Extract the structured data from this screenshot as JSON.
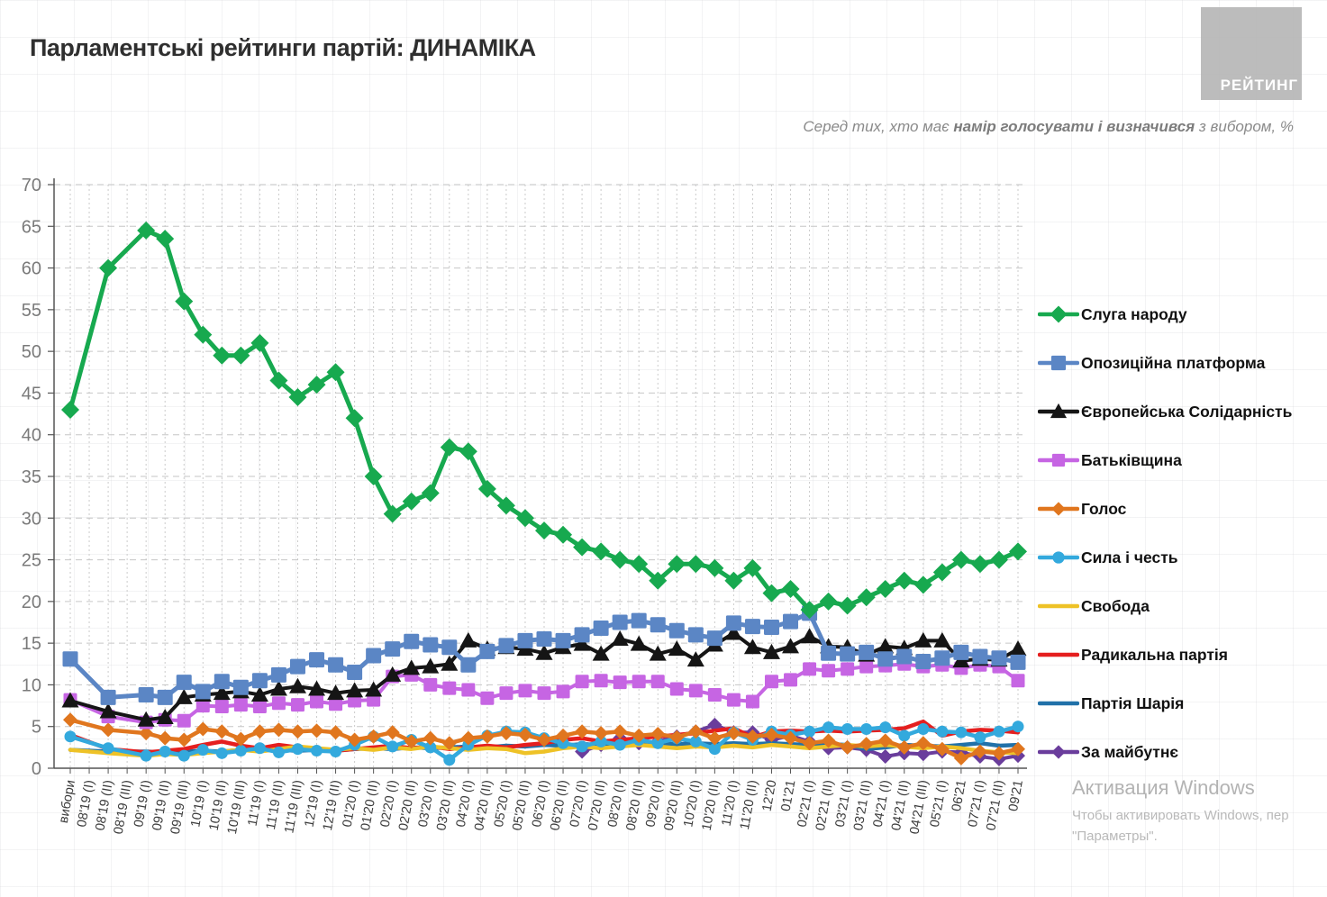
{
  "header": {
    "title": "Парламентські рейтинги партій: ДИНАМІКА",
    "subtitle_prefix": "Серед тих, хто має ",
    "subtitle_bold": "намір голосувати і визначився",
    "subtitle_suffix": " з вибором, %"
  },
  "logo": {
    "text": "РЕЙТИНГ",
    "color": "#b7b7b7"
  },
  "watermark": {
    "line1": "Активация Windows",
    "line2": "Чтобы активировать Windows, пер",
    "line3": "\"Параметры\"."
  },
  "chart_data": {
    "type": "line",
    "title": "Парламентські рейтинги партій: ДИНАМІКА",
    "xlabel": "",
    "ylabel": "",
    "ylim": [
      0,
      70
    ],
    "ytick_step": 5,
    "grid": true,
    "x_labels_rotated": true,
    "legend_position": "right",
    "categories": [
      "вибори",
      "08'19 (I)",
      "08'19 (II)",
      "08'19 (III)",
      "09'19 (I)",
      "09'19 (II)",
      "09'19 (III)",
      "10'19 (I)",
      "10'19 (II)",
      "10'19 (III)",
      "11'19 (I)",
      "11'19 (II)",
      "11'19 (III)",
      "12'19 (I)",
      "12'19 (II)",
      "01'20 (I)",
      "01'20 (II)",
      "02'20 (I)",
      "02'20 (II)",
      "03'20 (I)",
      "03'20 (II)",
      "04'20 (I)",
      "04'20 (II)",
      "05'20 (I)",
      "05'20 (II)",
      "06'20 (I)",
      "06'20 (II)",
      "07'20 (I)",
      "07'20 (II)",
      "08'20 (I)",
      "08'20 (II)",
      "09'20 (I)",
      "09'20 (II)",
      "10'20 (I)",
      "10'20 (II)",
      "11'20 (I)",
      "11'20 (II)",
      "12'20",
      "01'21",
      "02'21 (I)",
      "02'21 (II)",
      "03'21 (I)",
      "03'21 (II)",
      "04'21 (I)",
      "04'21 (II)",
      "04'21 (III)",
      "05'21 (I)",
      "06'21",
      "07'21 (I)",
      "07'21 (II)",
      "09'21"
    ],
    "series": [
      {
        "name": "Слуга народу",
        "color": "#17a94f",
        "marker": "diamond",
        "line_width": 5,
        "marker_size": 9,
        "values": [
          43,
          null,
          60,
          null,
          64.5,
          63.5,
          56,
          52,
          49.5,
          49.5,
          51,
          46.5,
          44.5,
          46,
          47.5,
          42,
          35,
          30.5,
          32,
          33,
          38.5,
          38,
          33.5,
          31.5,
          30,
          28.5,
          28,
          26.5,
          26,
          25,
          24.5,
          22.5,
          24.5,
          24.5,
          24,
          22.5,
          24,
          21,
          21.5,
          19,
          20,
          19.5,
          20.5,
          21.5,
          22.5,
          22,
          23.5,
          25,
          24.5,
          25,
          26
        ]
      },
      {
        "name": "Опозиційна платформа",
        "color": "#5b86c5",
        "marker": "square",
        "line_width": 5,
        "marker_size": 8.5,
        "values": [
          13.1,
          null,
          8.5,
          null,
          8.8,
          8.5,
          10.3,
          9.2,
          10.4,
          9.7,
          10.5,
          11.2,
          12.2,
          13,
          12.4,
          11.5,
          13.5,
          14.3,
          15.2,
          14.8,
          14.5,
          12.4,
          14,
          14.7,
          15.3,
          15.5,
          15.3,
          16,
          16.8,
          17.5,
          17.7,
          17.2,
          16.5,
          16,
          15.6,
          17.4,
          17,
          16.9,
          17.6,
          18.6,
          13.8,
          13.7,
          13.9,
          13.1,
          13.4,
          12.8,
          13.2,
          13.9,
          13.4,
          13.2,
          12.7
        ]
      },
      {
        "name": "Європейська Солідарність",
        "color": "#151515",
        "marker": "triangle",
        "line_width": 4,
        "marker_size": 8.5,
        "values": [
          8.1,
          null,
          6.8,
          null,
          5.8,
          6.1,
          8.5,
          8.8,
          9,
          9.2,
          8.8,
          9.5,
          9.8,
          9.5,
          9,
          9.3,
          9.4,
          11.2,
          12,
          12.2,
          12.5,
          15.3,
          14.3,
          14.5,
          14.3,
          13.8,
          14.5,
          14.9,
          13.7,
          15.5,
          14.9,
          13.7,
          14.3,
          13,
          14.8,
          16.2,
          14.5,
          13.9,
          14.6,
          15.8,
          14.6,
          14.5,
          13.6,
          14.6,
          14.4,
          15.3,
          15.3,
          12.9,
          13.1,
          13,
          14.3
        ]
      },
      {
        "name": "Батьківщина",
        "color": "#c665e3",
        "marker": "square",
        "line_width": 4,
        "marker_size": 7.5,
        "values": [
          8.2,
          null,
          6.2,
          null,
          5.5,
          5.8,
          5.7,
          7.5,
          7.4,
          7.6,
          7.4,
          7.8,
          7.6,
          8,
          7.7,
          8.1,
          8.2,
          11,
          11.2,
          10,
          9.6,
          9.4,
          8.4,
          9,
          9.3,
          9,
          9.2,
          10.4,
          10.5,
          10.3,
          10.4,
          10.4,
          9.5,
          9.3,
          8.8,
          8.2,
          8,
          10.4,
          10.6,
          11.9,
          11.7,
          11.9,
          12.2,
          12.3,
          12.5,
          12.2,
          12.4,
          12,
          12.4,
          12.2,
          10.5
        ]
      },
      {
        "name": "Голос",
        "color": "#e0761e",
        "marker": "diamond",
        "line_width": 4.5,
        "marker_size": 7,
        "values": [
          5.8,
          null,
          4.6,
          null,
          4.2,
          3.6,
          3.4,
          4.7,
          4.4,
          3.5,
          4.4,
          4.6,
          4.4,
          4.5,
          4.3,
          3.4,
          3.8,
          4.3,
          3.2,
          3.6,
          3,
          3.6,
          3.8,
          4.2,
          4,
          3.4,
          3.9,
          4.4,
          4.2,
          4.4,
          3.9,
          4.1,
          3.7,
          4.4,
          3.6,
          4.2,
          3.8,
          4,
          3.6,
          3,
          3.3,
          2.5,
          2.9,
          3.3,
          2.5,
          3,
          2.3,
          1.2,
          2,
          1.8,
          2.3
        ]
      },
      {
        "name": "Сила і честь",
        "color": "#33a9dd",
        "marker": "circle",
        "line_width": 4.5,
        "marker_size": 6.5,
        "values": [
          3.8,
          null,
          2.4,
          null,
          1.5,
          2,
          1.5,
          2.2,
          1.8,
          2.1,
          2.4,
          1.9,
          2.3,
          2.1,
          2,
          2.8,
          3.8,
          2.6,
          3.4,
          2.5,
          1,
          2.8,
          3.9,
          4.4,
          4.3,
          3.6,
          3,
          2.6,
          3.2,
          2.8,
          3.4,
          3,
          3.6,
          3.2,
          2.3,
          4.3,
          3.4,
          4.4,
          4,
          4.4,
          4.9,
          4.7,
          4.7,
          4.9,
          3.9,
          4.7,
          4.4,
          4.3,
          3.7,
          4.4,
          5
        ]
      },
      {
        "name": "Свобода",
        "color": "#eec227",
        "marker": "none",
        "line_width": 4.5,
        "marker_size": 0,
        "values": [
          2.2,
          null,
          1.8,
          null,
          1.5,
          1.7,
          1.6,
          1.8,
          2,
          2.2,
          2,
          2.3,
          2.6,
          2.4,
          2.2,
          2.4,
          2.2,
          2.5,
          2.3,
          2.6,
          2.4,
          2.2,
          2.4,
          2.3,
          1.8,
          2,
          2.4,
          2.6,
          2.4,
          2.6,
          2.8,
          2.6,
          2.4,
          2.6,
          2.5,
          2.7,
          2.5,
          2.8,
          2.6,
          2.4,
          2.6,
          2.8,
          2.6,
          2.8,
          2.6,
          2.4,
          2.6,
          2.4,
          2.1,
          1.9,
          1.8
        ]
      },
      {
        "name": "Радикальна партія",
        "color": "#e51f1f",
        "marker": "none",
        "line_width": 4.5,
        "marker_size": 0,
        "values": [
          4,
          null,
          2.3,
          null,
          1.9,
          2.1,
          2.3,
          2.8,
          3.2,
          2.7,
          2.4,
          2.8,
          2.5,
          2.3,
          2.1,
          2.3,
          2.5,
          2.7,
          2.4,
          2.6,
          2.3,
          2.5,
          2.7,
          2.5,
          2.8,
          3,
          3.4,
          3.6,
          3.2,
          3.4,
          3.6,
          3.8,
          4,
          4.2,
          4.5,
          4.8,
          3.7,
          4.4,
          4.5,
          4.4,
          4.5,
          4.4,
          4.5,
          4.6,
          4.8,
          5.6,
          3.9,
          4.4,
          4.6,
          4.5,
          4.3
        ]
      },
      {
        "name": "Партія Шарія",
        "color": "#2171a9",
        "marker": "none",
        "line_width": 4.5,
        "marker_size": 0,
        "values": [
          2.2,
          null,
          2,
          null,
          2,
          1.9,
          2,
          2.1,
          2,
          2.2,
          2.1,
          2.2,
          2.1,
          2.2,
          2.1,
          2.3,
          2.4,
          2.3,
          2.5,
          2.4,
          2.5,
          2.6,
          2.5,
          2.7,
          2.6,
          2.8,
          2.7,
          2.9,
          2.8,
          3,
          2.9,
          3,
          2.9,
          3,
          2.9,
          3,
          2.9,
          3,
          2.9,
          2.8,
          2.9,
          2.8,
          2.3,
          2.5,
          2.8,
          2.7,
          2.6,
          2.8,
          3,
          2.7,
          2.8
        ]
      },
      {
        "name": "За майбутнє",
        "color": "#6a3d9c",
        "marker": "diamond",
        "line_width": 4,
        "marker_size": 7,
        "values": [
          null,
          null,
          null,
          null,
          null,
          null,
          null,
          null,
          null,
          null,
          null,
          null,
          null,
          null,
          null,
          null,
          null,
          null,
          null,
          null,
          null,
          null,
          null,
          null,
          null,
          null,
          null,
          2,
          2.8,
          3.6,
          3,
          3.2,
          3.8,
          4.4,
          5.2,
          4.3,
          4.3,
          3.4,
          3.9,
          3.2,
          2.4,
          2.5,
          2.2,
          1.4,
          1.8,
          1.7,
          2,
          1.9,
          1.4,
          1.1,
          1.5
        ]
      }
    ]
  }
}
